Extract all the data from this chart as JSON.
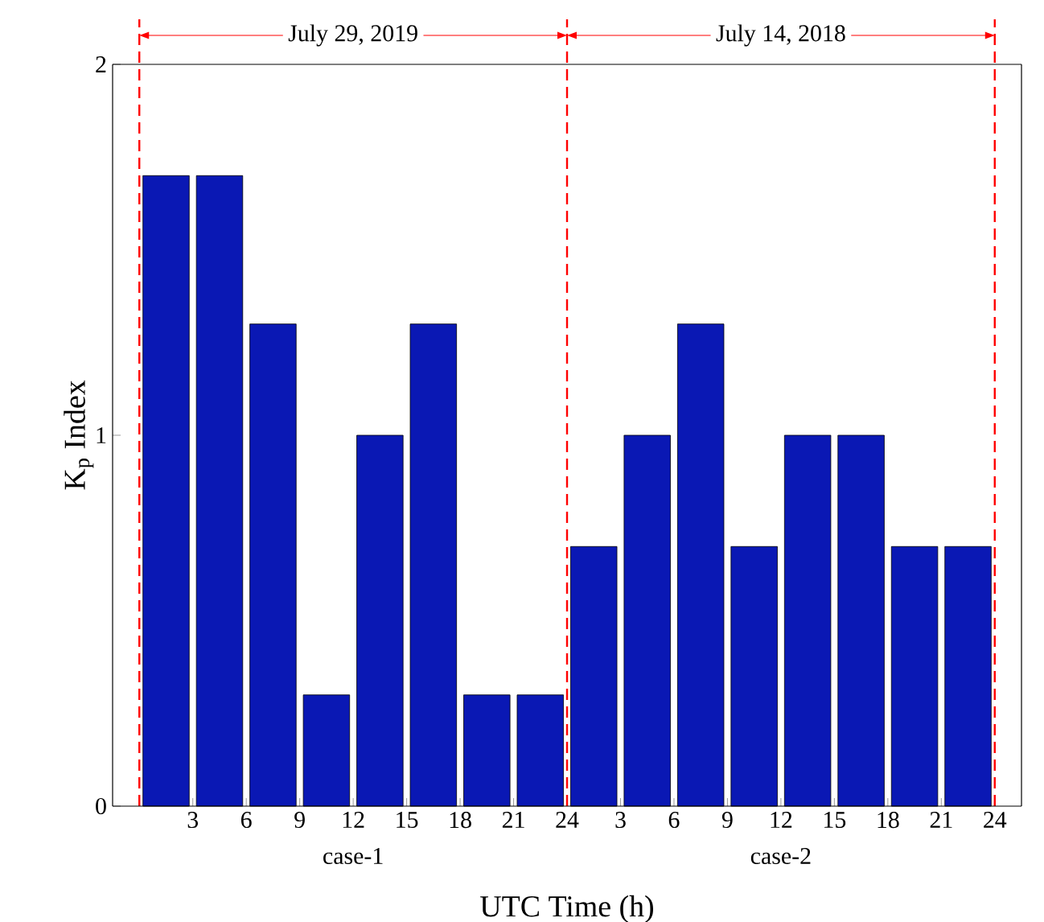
{
  "chart_data": [
    {
      "type": "bar",
      "title": "July 29, 2019",
      "ylabel": "K$_{p}$ Index",
      "x": [
        1.5,
        4.5,
        7.5,
        10.5,
        13.5,
        16.5,
        19.5,
        22.5
      ],
      "values": [
        1.7,
        1.7,
        1.3,
        0.3,
        1.0,
        1.3,
        0.3,
        0.3
      ],
      "color": "#0a18b4",
      "xlim": [
        -1.5,
        24
      ],
      "ylim": [
        0,
        2
      ],
      "xticks": [
        3,
        6,
        9,
        12,
        15,
        18,
        21,
        24
      ],
      "yticks": [
        0,
        1,
        2
      ],
      "ref_lines": [
        {
          "axis": "x",
          "value": 0,
          "color": "#ff0000",
          "line_style": "dashed"
        },
        {
          "axis": "x",
          "value": 24,
          "color": "#ff0000",
          "line_style": "dashed"
        }
      ],
      "annotations": [
        "case-1"
      ]
    },
    {
      "type": "bar",
      "title": "July 14, 2018",
      "xlabel": "UTC Time (h)",
      "x": [
        1.5,
        4.5,
        7.5,
        10.5,
        13.5,
        16.5,
        19.5,
        22.5
      ],
      "values": [
        0.7,
        1.0,
        1.3,
        0.7,
        1.0,
        1.0,
        0.7,
        0.7
      ],
      "color": "#0a18b4",
      "xlim": [
        0,
        25.5
      ],
      "ylim": [
        0,
        2
      ],
      "xticks": [
        3,
        6,
        9,
        12,
        15,
        18,
        21,
        24
      ],
      "tick_labels": "x",
      "ref_lines": [
        {
          "axis": "x",
          "value": 24,
          "color": "#ff0000",
          "line_style": "dashed"
        }
      ],
      "annotations": [
        "case-2"
      ]
    }
  ]
}
